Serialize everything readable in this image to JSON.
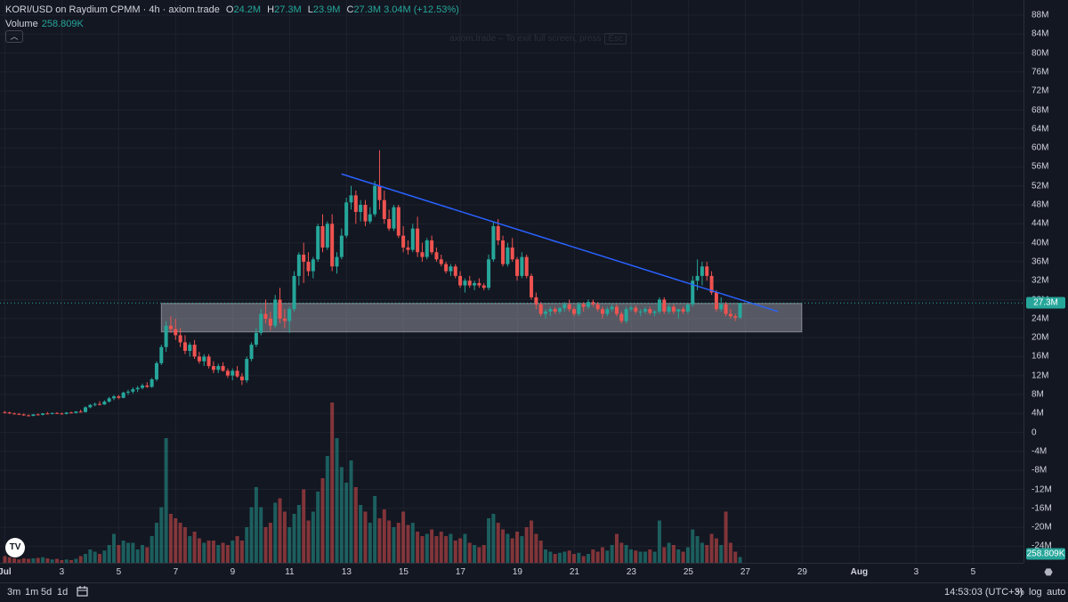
{
  "header": {
    "title": "KORI/USD on Raydium CPMM · 4h · axiom.trade",
    "ohlc": [
      {
        "label": "O",
        "value": "24.2M"
      },
      {
        "label": "H",
        "value": "27.3M"
      },
      {
        "label": "L",
        "value": "23.9M"
      },
      {
        "label": "C",
        "value": "27.3M"
      }
    ],
    "change": "3.04M (+12.53%)",
    "volume_label": "Volume",
    "volume_value": "258.809K"
  },
  "hint": {
    "text": "axiom.trade – To exit full screen, press",
    "key": "Esc"
  },
  "colors": {
    "up": "#26a69a",
    "down": "#ef5350",
    "trendline": "#2962ff",
    "zone": "#b2b5be"
  },
  "chart_data": {
    "type": "candlestick",
    "price_axis": {
      "ticks": [
        "88M",
        "84M",
        "80M",
        "76M",
        "72M",
        "68M",
        "64M",
        "60M",
        "56M",
        "52M",
        "48M",
        "44M",
        "40M",
        "36M",
        "32M",
        "28M",
        "24M",
        "20M",
        "16M",
        "12M",
        "8M",
        "4M",
        "0",
        "-4M",
        "-8M",
        "-12M",
        "-16M",
        "-20M",
        "-24M"
      ],
      "range": [
        -24000000,
        88000000
      ],
      "last_price_label": "27.3M",
      "last_volume_label": "258.809K"
    },
    "time_axis": {
      "ticks": [
        "Jul",
        "3",
        "5",
        "7",
        "9",
        "11",
        "13",
        "15",
        "17",
        "19",
        "21",
        "23",
        "25",
        "27",
        "29",
        "Aug",
        "3",
        "5"
      ]
    },
    "start_date": "2024-07-01",
    "timeframe_hours": 4,
    "candles_ohlcv": [
      [
        4.3,
        4.5,
        4.0,
        4.2,
        0.3
      ],
      [
        4.2,
        4.4,
        3.9,
        4.0,
        0.25
      ],
      [
        4.0,
        4.2,
        3.8,
        3.9,
        0.2
      ],
      [
        3.9,
        4.1,
        3.7,
        3.8,
        0.15
      ],
      [
        3.8,
        4.0,
        3.5,
        3.6,
        0.2
      ],
      [
        3.6,
        3.8,
        3.4,
        3.5,
        0.18
      ],
      [
        3.5,
        3.9,
        3.4,
        3.8,
        0.2
      ],
      [
        3.8,
        4.0,
        3.6,
        3.7,
        0.22
      ],
      [
        3.7,
        4.1,
        3.6,
        4.0,
        0.25
      ],
      [
        4.0,
        4.3,
        3.8,
        3.9,
        0.2
      ],
      [
        3.9,
        4.2,
        3.8,
        4.1,
        0.15
      ],
      [
        4.1,
        4.3,
        3.9,
        4.0,
        0.18
      ],
      [
        4.0,
        4.2,
        3.8,
        3.9,
        0.12
      ],
      [
        3.9,
        4.3,
        3.8,
        4.2,
        0.15
      ],
      [
        4.2,
        4.4,
        4.0,
        4.1,
        0.12
      ],
      [
        4.1,
        4.5,
        4.0,
        4.4,
        0.18
      ],
      [
        4.4,
        4.8,
        4.2,
        4.3,
        0.3
      ],
      [
        4.3,
        5.5,
        4.2,
        5.3,
        0.4
      ],
      [
        5.3,
        6.0,
        5.1,
        5.8,
        0.6
      ],
      [
        5.8,
        6.3,
        5.5,
        6.0,
        0.5
      ],
      [
        6.0,
        6.6,
        5.7,
        5.9,
        0.4
      ],
      [
        5.9,
        6.8,
        5.8,
        6.5,
        0.55
      ],
      [
        6.5,
        7.5,
        6.3,
        7.2,
        0.8
      ],
      [
        7.2,
        7.9,
        6.8,
        7.6,
        1.3
      ],
      [
        7.6,
        7.9,
        7.0,
        7.3,
        0.8
      ],
      [
        7.3,
        8.6,
        7.2,
        8.4,
        1.0
      ],
      [
        8.4,
        9.0,
        7.9,
        8.6,
        0.9
      ],
      [
        8.6,
        9.5,
        8.2,
        9.1,
        0.9
      ],
      [
        9.1,
        9.8,
        8.5,
        9.4,
        0.6
      ],
      [
        9.4,
        10.3,
        9.1,
        9.9,
        0.8
      ],
      [
        9.9,
        10.6,
        9.4,
        9.6,
        0.7
      ],
      [
        9.6,
        11.5,
        9.4,
        11.2,
        1.2
      ],
      [
        11.2,
        15.0,
        10.8,
        14.6,
        1.8
      ],
      [
        14.6,
        18.5,
        14.2,
        18.0,
        2.5
      ],
      [
        18.0,
        23.5,
        17.0,
        22.5,
        5.6
      ],
      [
        22.5,
        24.5,
        21.0,
        21.8,
        2.2
      ],
      [
        21.8,
        24.0,
        19.5,
        20.5,
        2.0
      ],
      [
        20.5,
        22.0,
        18.0,
        19.0,
        1.8
      ],
      [
        19.0,
        20.5,
        16.5,
        17.2,
        1.6
      ],
      [
        17.2,
        19.0,
        16.0,
        18.5,
        1.2
      ],
      [
        18.5,
        19.5,
        15.5,
        16.0,
        1.4
      ],
      [
        16.0,
        17.0,
        14.5,
        15.0,
        1.1
      ],
      [
        15.0,
        16.5,
        14.0,
        16.0,
        0.9
      ],
      [
        16.0,
        16.5,
        13.5,
        14.0,
        1.0
      ],
      [
        14.0,
        15.0,
        12.5,
        13.2,
        1.0
      ],
      [
        13.2,
        14.5,
        12.5,
        14.0,
        0.8
      ],
      [
        14.0,
        14.8,
        12.8,
        13.0,
        0.9
      ],
      [
        13.0,
        13.5,
        11.5,
        12.0,
        0.8
      ],
      [
        12.0,
        13.5,
        11.0,
        13.0,
        1.0
      ],
      [
        13.0,
        14.0,
        11.5,
        11.8,
        1.2
      ],
      [
        11.8,
        12.5,
        10.0,
        11.0,
        1.0
      ],
      [
        11.0,
        16.0,
        10.5,
        15.5,
        1.6
      ],
      [
        15.5,
        19.0,
        15.0,
        18.5,
        2.5
      ],
      [
        18.5,
        22.0,
        18.0,
        21.0,
        3.4
      ],
      [
        21.0,
        26.0,
        20.5,
        25.0,
        2.5
      ],
      [
        25.0,
        28.0,
        23.0,
        24.0,
        1.6
      ],
      [
        24.0,
        25.5,
        21.5,
        22.5,
        1.8
      ],
      [
        22.5,
        29.0,
        22.0,
        28.0,
        2.7
      ],
      [
        28.0,
        30.5,
        23.0,
        24.0,
        2.9
      ],
      [
        24.0,
        26.0,
        22.0,
        23.5,
        2.3
      ],
      [
        23.5,
        26.5,
        21.0,
        26.0,
        1.6
      ],
      [
        26.0,
        34.0,
        25.5,
        33.0,
        2.2
      ],
      [
        33.0,
        38.0,
        31.0,
        37.5,
        2.6
      ],
      [
        37.5,
        40.0,
        31.5,
        36.0,
        3.3
      ],
      [
        36.0,
        38.0,
        33.0,
        34.0,
        1.9
      ],
      [
        34.0,
        37.0,
        32.5,
        36.5,
        2.3
      ],
      [
        36.5,
        44.0,
        36.0,
        43.5,
        3.2
      ],
      [
        43.5,
        46.0,
        38.0,
        39.0,
        3.8
      ],
      [
        39.0,
        44.5,
        38.5,
        44.0,
        4.8
      ],
      [
        44.0,
        46.0,
        34.0,
        35.0,
        7.2
      ],
      [
        35.0,
        38.0,
        33.5,
        37.0,
        5.6
      ],
      [
        37.0,
        43.0,
        36.5,
        41.5,
        4.3
      ],
      [
        41.5,
        49.5,
        41.0,
        48.5,
        3.6
      ],
      [
        48.5,
        52.0,
        47.0,
        50.0,
        4.6
      ],
      [
        50.0,
        51.0,
        44.0,
        46.5,
        3.4
      ],
      [
        46.5,
        49.0,
        44.5,
        48.0,
        2.6
      ],
      [
        48.0,
        49.0,
        43.5,
        44.5,
        2.3
      ],
      [
        44.5,
        47.5,
        44.0,
        46.0,
        1.8
      ],
      [
        46.0,
        53.0,
        45.5,
        52.0,
        3.0
      ],
      [
        52.0,
        59.5,
        47.0,
        49.0,
        2.0
      ],
      [
        49.0,
        51.0,
        44.0,
        45.0,
        2.4
      ],
      [
        45.0,
        47.0,
        42.5,
        43.0,
        1.9
      ],
      [
        43.0,
        48.0,
        42.5,
        47.5,
        1.6
      ],
      [
        47.5,
        48.0,
        41.0,
        41.5,
        1.8
      ],
      [
        41.5,
        43.5,
        38.0,
        39.0,
        2.3
      ],
      [
        39.0,
        40.5,
        37.5,
        38.5,
        1.7
      ],
      [
        38.5,
        44.0,
        38.0,
        43.0,
        1.8
      ],
      [
        43.0,
        45.5,
        37.0,
        38.0,
        1.4
      ],
      [
        38.0,
        40.0,
        36.0,
        37.0,
        1.2
      ],
      [
        37.0,
        41.0,
        36.5,
        40.5,
        1.3
      ],
      [
        40.5,
        41.5,
        37.5,
        38.0,
        1.5
      ],
      [
        38.0,
        39.0,
        36.0,
        36.5,
        1.2
      ],
      [
        36.5,
        37.5,
        35.0,
        35.5,
        1.4
      ],
      [
        35.5,
        36.0,
        33.5,
        34.0,
        1.2
      ],
      [
        34.0,
        35.5,
        33.0,
        35.0,
        1.3
      ],
      [
        35.0,
        35.5,
        32.5,
        33.0,
        1.0
      ],
      [
        33.0,
        34.0,
        30.5,
        31.0,
        1.1
      ],
      [
        31.0,
        32.5,
        29.5,
        32.0,
        1.3
      ],
      [
        32.0,
        33.0,
        30.5,
        31.0,
        0.9
      ],
      [
        31.0,
        32.0,
        30.0,
        31.5,
        0.8
      ],
      [
        31.5,
        32.5,
        30.5,
        31.0,
        0.7
      ],
      [
        31.0,
        31.5,
        30.0,
        30.5,
        0.8
      ],
      [
        30.5,
        37.5,
        30.0,
        36.5,
        2.0
      ],
      [
        36.5,
        44.5,
        36.0,
        43.5,
        2.2
      ],
      [
        43.5,
        45.0,
        39.5,
        40.5,
        1.8
      ],
      [
        40.5,
        41.5,
        35.0,
        35.5,
        1.5
      ],
      [
        35.5,
        40.0,
        35.0,
        39.0,
        1.3
      ],
      [
        39.0,
        41.0,
        36.0,
        36.5,
        1.1
      ],
      [
        36.5,
        37.0,
        32.0,
        33.0,
        1.4
      ],
      [
        33.0,
        38.0,
        32.5,
        37.0,
        1.2
      ],
      [
        37.0,
        37.5,
        32.5,
        33.0,
        1.6
      ],
      [
        33.0,
        33.5,
        28.0,
        28.5,
        1.9
      ],
      [
        28.5,
        29.5,
        26.0,
        27.0,
        1.3
      ],
      [
        27.0,
        27.5,
        24.5,
        25.0,
        1.0
      ],
      [
        25.0,
        26.0,
        24.0,
        25.5,
        0.6
      ],
      [
        25.5,
        26.5,
        24.5,
        26.0,
        0.5
      ],
      [
        26.0,
        26.5,
        25.0,
        25.5,
        0.4
      ],
      [
        25.5,
        26.5,
        25.0,
        26.2,
        0.45
      ],
      [
        26.2,
        27.5,
        25.5,
        27.0,
        0.5
      ],
      [
        27.0,
        28.0,
        25.5,
        26.0,
        0.55
      ],
      [
        26.0,
        26.5,
        24.5,
        25.0,
        0.4
      ],
      [
        25.0,
        27.5,
        24.5,
        27.0,
        0.45
      ],
      [
        27.0,
        27.5,
        25.5,
        26.5,
        0.3
      ],
      [
        26.5,
        28.0,
        26.0,
        27.5,
        0.4
      ],
      [
        27.5,
        28.0,
        26.5,
        27.0,
        0.6
      ],
      [
        27.0,
        27.5,
        25.5,
        26.0,
        0.5
      ],
      [
        26.0,
        26.5,
        24.0,
        25.0,
        0.7
      ],
      [
        25.0,
        26.5,
        24.5,
        26.0,
        0.55
      ],
      [
        26.0,
        27.0,
        25.5,
        26.5,
        0.8
      ],
      [
        26.5,
        27.0,
        24.5,
        25.0,
        1.3
      ],
      [
        25.0,
        25.5,
        23.0,
        23.5,
        0.9
      ],
      [
        23.5,
        26.5,
        23.0,
        26.0,
        0.8
      ],
      [
        26.0,
        26.8,
        25.5,
        26.3,
        0.6
      ],
      [
        26.3,
        26.8,
        25.0,
        25.5,
        0.55
      ],
      [
        25.5,
        26.0,
        24.5,
        25.5,
        0.5
      ],
      [
        25.5,
        26.5,
        25.0,
        26.0,
        0.5
      ],
      [
        26.0,
        26.5,
        24.8,
        25.2,
        0.6
      ],
      [
        25.2,
        25.8,
        24.5,
        25.5,
        0.5
      ],
      [
        25.5,
        28.5,
        25.0,
        28.0,
        1.9
      ],
      [
        28.0,
        28.5,
        25.0,
        25.5,
        0.7
      ],
      [
        25.5,
        27.0,
        25.0,
        26.5,
        0.9
      ],
      [
        26.5,
        27.0,
        25.0,
        25.5,
        0.8
      ],
      [
        25.5,
        26.0,
        24.0,
        26.0,
        0.6
      ],
      [
        26.0,
        26.5,
        25.0,
        25.5,
        0.5
      ],
      [
        25.5,
        27.0,
        25.0,
        27.0,
        0.7
      ],
      [
        27.0,
        33.0,
        26.5,
        32.0,
        1.5
      ],
      [
        32.0,
        36.5,
        30.0,
        33.0,
        1.2
      ],
      [
        33.0,
        36.0,
        31.0,
        35.0,
        0.9
      ],
      [
        35.0,
        36.0,
        32.0,
        33.0,
        0.8
      ],
      [
        33.0,
        34.0,
        29.0,
        29.5,
        1.3
      ],
      [
        29.5,
        30.0,
        25.5,
        26.0,
        1.1
      ],
      [
        26.0,
        28.5,
        25.5,
        27.0,
        0.8
      ],
      [
        27.0,
        27.5,
        24.5,
        25.0,
        2.3
      ],
      [
        25.0,
        26.0,
        24.0,
        24.5,
        0.9
      ],
      [
        24.5,
        25.0,
        23.5,
        24.2,
        0.5
      ],
      [
        24.2,
        27.3,
        23.9,
        27.3,
        0.26
      ]
    ],
    "drawings": {
      "trendline": {
        "start": [
          "2024-07-12T20:00",
          54.5
        ],
        "end": [
          "2024-07-28T04:00",
          25.5
        ]
      },
      "support_zone": {
        "start": "2024-07-06T12:00",
        "end": "2024-07-29T00:00",
        "top": 27.2,
        "bottom": 21.2
      }
    }
  },
  "bottom_bar": {
    "ranges": [
      "3m",
      "1m",
      "5d",
      "1d"
    ],
    "time": "14:53:03 (UTC+3)",
    "options": [
      "%",
      "log",
      "auto"
    ]
  }
}
